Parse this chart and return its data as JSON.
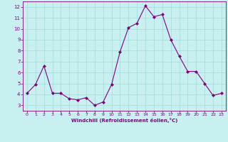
{
  "x": [
    0,
    1,
    2,
    3,
    4,
    5,
    6,
    7,
    8,
    9,
    10,
    11,
    12,
    13,
    14,
    15,
    16,
    17,
    18,
    19,
    20,
    21,
    22,
    23
  ],
  "y": [
    4.1,
    4.9,
    6.6,
    4.1,
    4.1,
    3.6,
    3.5,
    3.7,
    3.0,
    3.3,
    4.9,
    7.9,
    10.1,
    10.5,
    12.1,
    11.1,
    11.3,
    9.0,
    7.5,
    6.1,
    6.1,
    5.0,
    3.9,
    4.1
  ],
  "line_color": "#800080",
  "marker_color": "#800080",
  "bg_color": "#c8f0f0",
  "grid_color": "#aadddd",
  "xlabel": "Windchill (Refroidissement éolien,°C)",
  "xlabel_color": "#800080",
  "tick_color": "#800080",
  "ylim": [
    2.5,
    12.5
  ],
  "xlim": [
    -0.5,
    23.5
  ],
  "yticks": [
    3,
    4,
    5,
    6,
    7,
    8,
    9,
    10,
    11,
    12
  ],
  "xticks": [
    0,
    1,
    2,
    3,
    4,
    5,
    6,
    7,
    8,
    9,
    10,
    11,
    12,
    13,
    14,
    15,
    16,
    17,
    18,
    19,
    20,
    21,
    22,
    23
  ],
  "figsize": [
    3.2,
    2.0
  ],
  "dpi": 100
}
